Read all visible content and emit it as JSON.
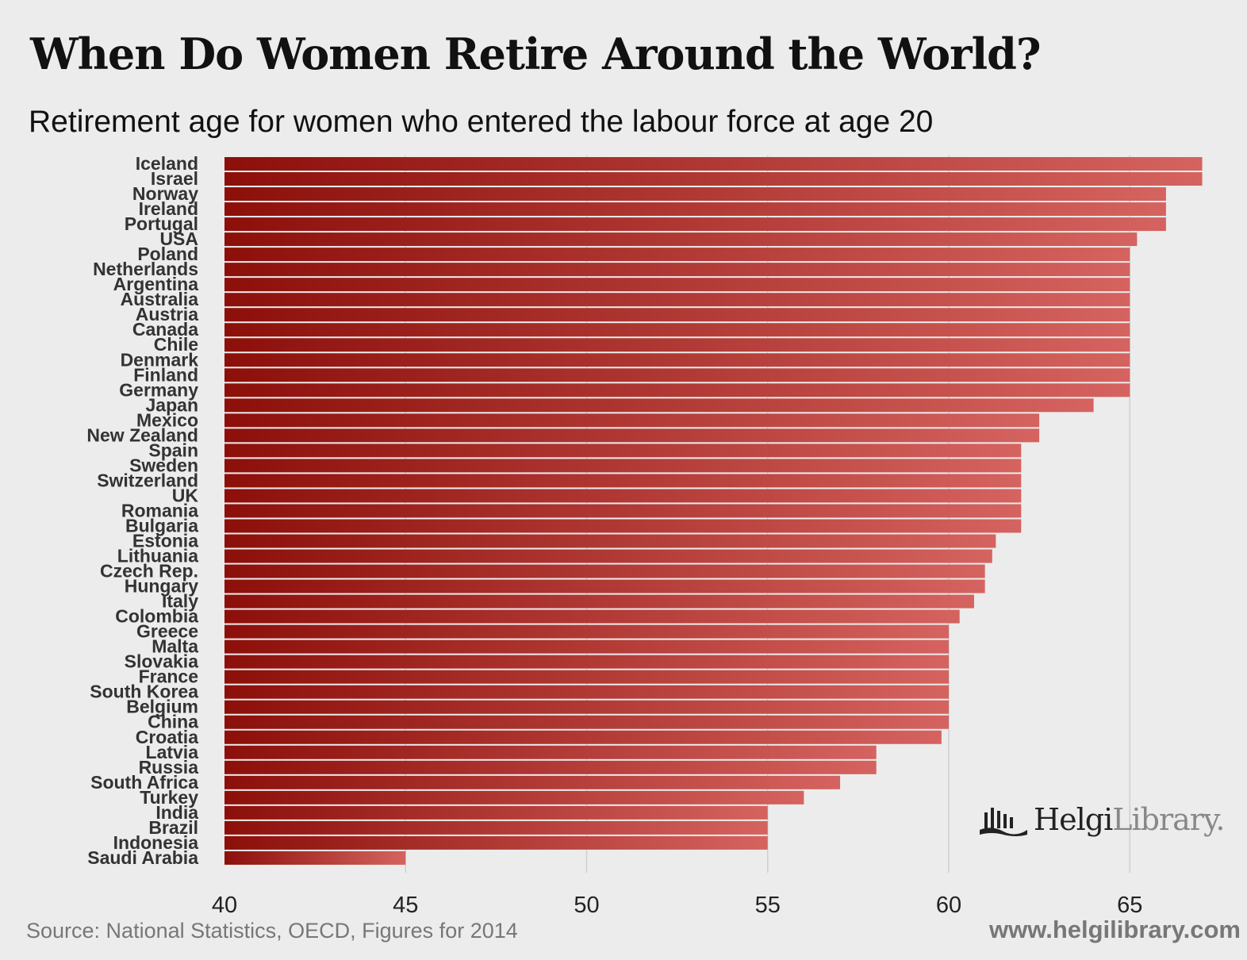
{
  "title": "When Do Women Retire Around the World?",
  "subtitle": "Retirement age for women who entered the labour force at age 20",
  "source": "Source: National Statistics, OECD, Figures for 2014",
  "website": "www.helgilibrary.com",
  "logo": {
    "name_dark": "Helgi",
    "name_light": "Library."
  },
  "colors": {
    "bar_start": "#8c0f0a",
    "bar_end": "#d5635f",
    "gridline": "#cfcfcf"
  },
  "chart_data": {
    "type": "bar",
    "orientation": "horizontal",
    "title": "When Do Women Retire Around the World?",
    "subtitle": "Retirement age for women who entered the labour force at age 20",
    "xlabel": "",
    "ylabel": "",
    "xlim": [
      40,
      67
    ],
    "xticks": [
      40,
      45,
      50,
      55,
      60,
      65
    ],
    "grid": "vertical",
    "categories": [
      "Iceland",
      "Israel",
      "Norway",
      "Ireland",
      "Portugal",
      "USA",
      "Poland",
      "Netherlands",
      "Argentina",
      "Australia",
      "Austria",
      "Canada",
      "Chile",
      "Denmark",
      "Finland",
      "Germany",
      "Japan",
      "Mexico",
      "New Zealand",
      "Spain",
      "Sweden",
      "Switzerland",
      "UK",
      "Romania",
      "Bulgaria",
      "Estonia",
      "Lithuania",
      "Czech Rep.",
      "Hungary",
      "Italy",
      "Colombia",
      "Greece",
      "Malta",
      "Slovakia",
      "France",
      "South Korea",
      "Belgium",
      "China",
      "Croatia",
      "Latvia",
      "Russia",
      "South Africa",
      "Turkey",
      "India",
      "Brazil",
      "Indonesia",
      "Saudi Arabia"
    ],
    "values": [
      67,
      67,
      66,
      66,
      66,
      65.2,
      65,
      65,
      65,
      65,
      65,
      65,
      65,
      65,
      65,
      65,
      64,
      62.5,
      62.5,
      62,
      62,
      62,
      62,
      62,
      62,
      61.3,
      61.2,
      61,
      61,
      60.7,
      60.3,
      60,
      60,
      60,
      60,
      60,
      60,
      60,
      59.8,
      58,
      58,
      57,
      56,
      55,
      55,
      55,
      45
    ]
  }
}
